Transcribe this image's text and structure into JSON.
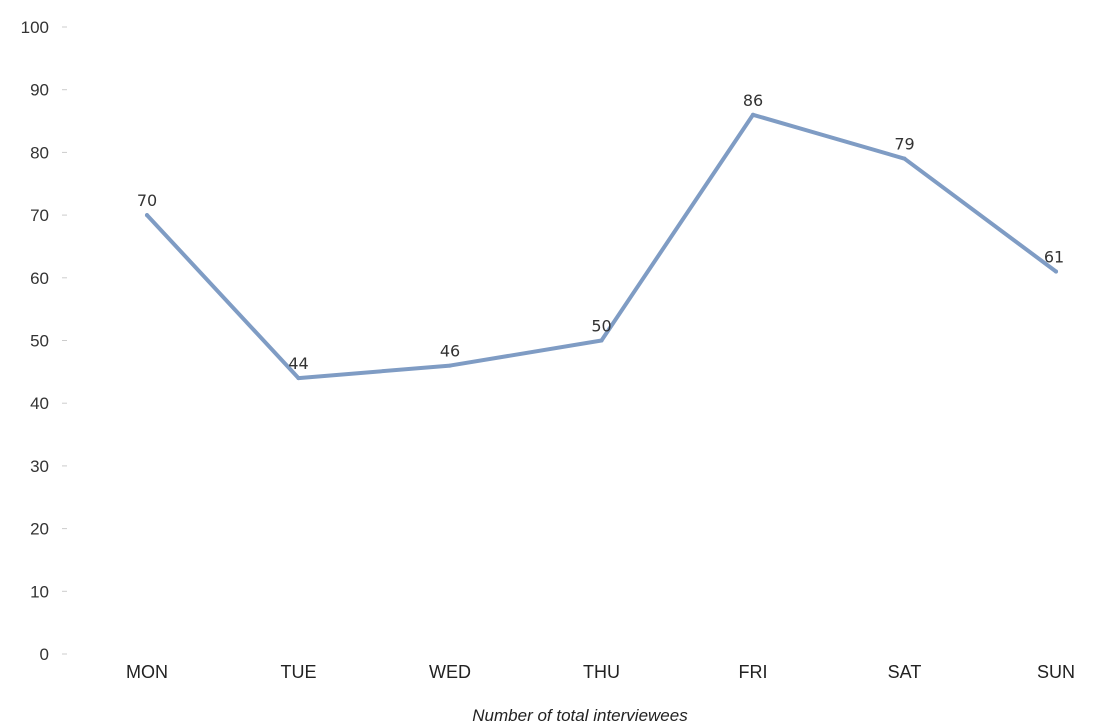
{
  "chart_data": {
    "type": "line",
    "categories": [
      "MON",
      "TUE",
      "WED",
      "THU",
      "FRI",
      "SAT",
      "SUN"
    ],
    "series": [
      {
        "values": [
          70,
          44,
          46,
          50,
          86,
          79,
          61
        ],
        "color": "#7f9cc4"
      }
    ],
    "xlabel": "Number of total interviewees",
    "ylabel": "",
    "ylim": [
      0,
      100
    ],
    "yticks": [
      0,
      10,
      20,
      30,
      40,
      50,
      60,
      70,
      80,
      90,
      100
    ],
    "grid": false,
    "legend": "none"
  }
}
